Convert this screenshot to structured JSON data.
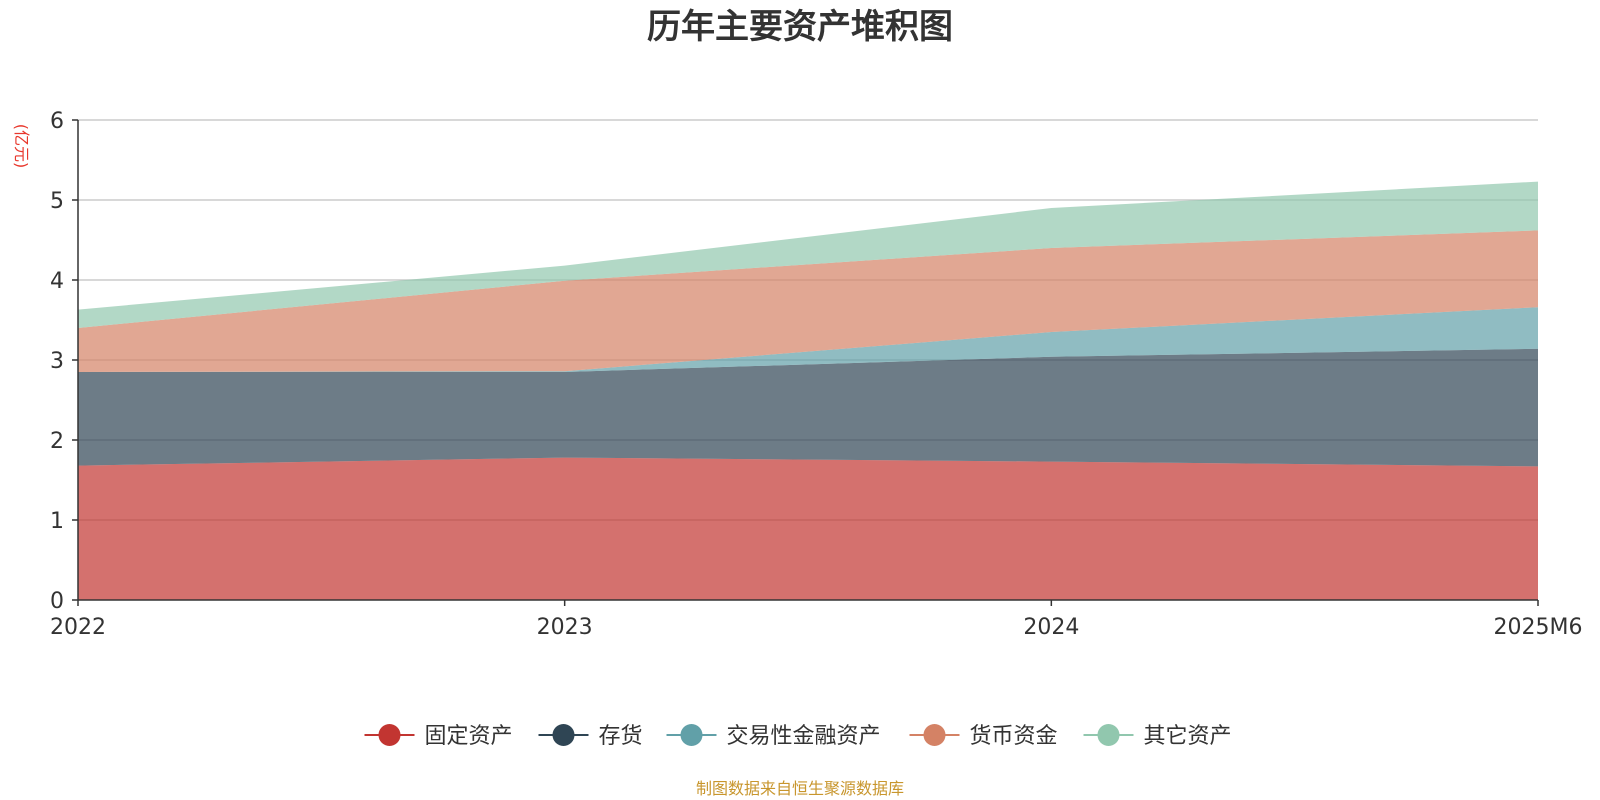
{
  "chart_data": {
    "type": "area",
    "stacked": true,
    "title": "历年主要资产堆积图",
    "ylabel": "(亿元)",
    "xlabel": "",
    "categories": [
      "2022",
      "2023",
      "2024",
      "2025M6"
    ],
    "ylim": [
      0,
      6
    ],
    "yticks": [
      "0",
      "1",
      "2",
      "3",
      "4",
      "5",
      "6"
    ],
    "grid": true,
    "legend_position": "bottom",
    "series": [
      {
        "name": "固定资产",
        "values": [
          1.68,
          1.78,
          1.73,
          1.67
        ],
        "color": "#c23531"
      },
      {
        "name": "存货",
        "values": [
          1.17,
          1.07,
          1.31,
          1.47
        ],
        "color": "#2f4554"
      },
      {
        "name": "交易性金融资产",
        "values": [
          0.0,
          0.01,
          0.31,
          0.52
        ],
        "color": "#61a0a8"
      },
      {
        "name": "货币资金",
        "values": [
          0.55,
          1.13,
          1.05,
          0.96
        ],
        "color": "#d48265"
      },
      {
        "name": "其它资产",
        "values": [
          0.23,
          0.19,
          0.5,
          0.61
        ],
        "color": "#91c7ae"
      }
    ]
  },
  "source_note": "制图数据来自恒生聚源数据库",
  "colors": {
    "unit_label": "#e8372c",
    "source_note": "#c8962d",
    "grid": "#cccccc",
    "axis": "#333333"
  }
}
